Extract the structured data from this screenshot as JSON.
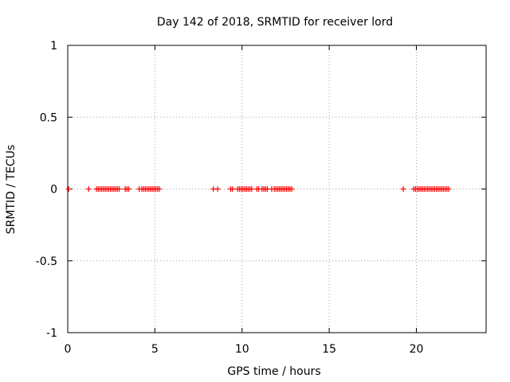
{
  "chart_data": {
    "type": "scatter",
    "title": "Day 142 of 2018, SRMTID for receiver lord",
    "xlabel": "GPS time / hours",
    "ylabel": "SRMTID / TECUs",
    "xlim": [
      0,
      24
    ],
    "ylim": [
      -1,
      1
    ],
    "xticks": [
      0,
      5,
      10,
      15,
      20
    ],
    "xtick_labels": [
      "0",
      "5",
      "10",
      "15",
      "20"
    ],
    "yticks": [
      -1,
      -0.5,
      0,
      0.5,
      1
    ],
    "ytick_labels": [
      "-1",
      "-0.5",
      "0",
      "0.5",
      "1"
    ],
    "grid": true,
    "marker": "+",
    "marker_color": "#ff0000",
    "series": [
      {
        "name": "SRMTID",
        "x": [
          0.05,
          1.2,
          1.65,
          1.75,
          1.85,
          1.95,
          2.05,
          2.15,
          2.25,
          2.35,
          2.45,
          2.55,
          2.65,
          2.75,
          2.85,
          2.95,
          3.3,
          3.4,
          3.5,
          4.1,
          4.25,
          4.35,
          4.45,
          4.55,
          4.65,
          4.75,
          4.85,
          4.95,
          5.05,
          5.15,
          5.25,
          8.35,
          8.6,
          9.35,
          9.45,
          9.75,
          9.85,
          9.95,
          10.05,
          10.15,
          10.25,
          10.35,
          10.45,
          10.55,
          10.85,
          10.95,
          11.15,
          11.25,
          11.35,
          11.45,
          11.7,
          11.85,
          11.95,
          12.05,
          12.15,
          12.25,
          12.35,
          12.45,
          12.55,
          12.65,
          12.75,
          12.85,
          19.25,
          19.85,
          19.95,
          20.05,
          20.15,
          20.25,
          20.35,
          20.45,
          20.55,
          20.65,
          20.75,
          20.85,
          20.95,
          21.05,
          21.15,
          21.25,
          21.35,
          21.45,
          21.55,
          21.65,
          21.75,
          21.85
        ],
        "y": [
          0,
          0,
          0,
          0,
          0,
          0,
          0,
          0,
          0,
          0,
          0,
          0,
          0,
          0,
          0,
          0,
          0,
          0,
          0,
          0,
          0,
          0,
          0,
          0,
          0,
          0,
          0,
          0,
          0,
          0,
          0,
          0,
          0,
          0,
          0,
          0,
          0,
          0,
          0,
          0,
          0,
          0,
          0,
          0,
          0,
          0,
          0,
          0,
          0,
          0,
          0,
          0,
          0,
          0,
          0,
          0,
          0,
          0,
          0,
          0,
          0,
          0,
          0,
          0,
          0,
          0,
          0,
          0,
          0,
          0,
          0,
          0,
          0,
          0,
          0,
          0,
          0,
          0,
          0,
          0,
          0,
          0,
          0,
          0
        ]
      }
    ]
  }
}
